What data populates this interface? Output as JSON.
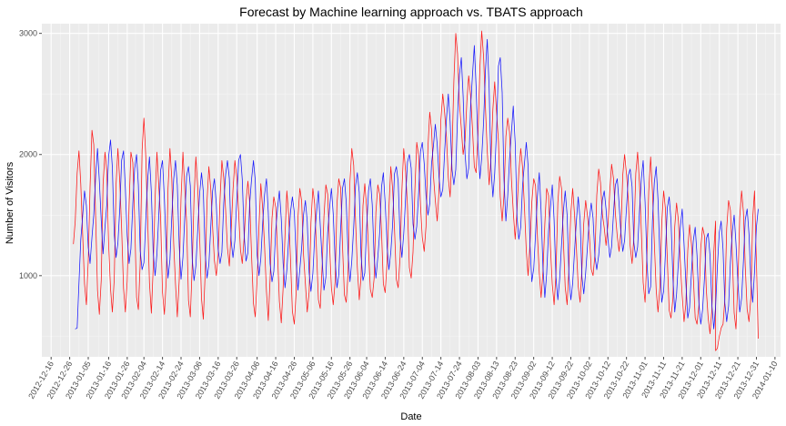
{
  "chart_data": {
    "type": "line",
    "title": "Forecast by Machine learning approach vs. TBATS approach",
    "xlabel": "Date",
    "ylabel": "Number of Visitors",
    "x_ticks": [
      "2012-12-16",
      "2012-12-26",
      "2013-01-05",
      "2013-01-16",
      "2013-01-26",
      "2013-02-04",
      "2013-02-14",
      "2013-02-24",
      "2013-03-06",
      "2013-03-16",
      "2013-03-26",
      "2013-04-06",
      "2013-04-16",
      "2013-04-26",
      "2013-05-06",
      "2013-05-16",
      "2013-05-26",
      "2013-06-04",
      "2013-06-14",
      "2013-06-24",
      "2013-07-04",
      "2013-07-14",
      "2013-07-24",
      "2013-08-03",
      "2013-08-13",
      "2013-08-23",
      "2013-09-02",
      "2013-09-12",
      "2013-09-22",
      "2013-10-02",
      "2013-10-12",
      "2013-10-22",
      "2013-11-01",
      "2013-11-11",
      "2013-11-21",
      "2013-12-01",
      "2013-12-11",
      "2013-12-21",
      "2013-12-31",
      "2014-01-10"
    ],
    "y_ticks": [
      1000,
      2000,
      3000
    ],
    "xlim": [
      "2012-12-11",
      "2014-01-13"
    ],
    "ylim": [
      330,
      3080
    ],
    "grid": true,
    "series": [
      {
        "color": "#FF0000",
        "line_style": "solid",
        "weekly_peaks": [
          [
            "2012-12-31",
            2030
          ],
          [
            "2013-01-07",
            2200
          ],
          [
            "2013-01-14",
            2020
          ],
          [
            "2013-01-21",
            2050
          ],
          [
            "2013-01-28",
            2020
          ],
          [
            "2013-02-04",
            2300
          ],
          [
            "2013-02-11",
            2020
          ],
          [
            "2013-02-18",
            2050
          ],
          [
            "2013-02-25",
            2020
          ],
          [
            "2013-03-04",
            1980
          ],
          [
            "2013-03-11",
            1900
          ],
          [
            "2013-03-18",
            1950
          ],
          [
            "2013-03-25",
            1950
          ],
          [
            "2013-04-01",
            1780
          ],
          [
            "2013-04-08",
            1760
          ],
          [
            "2013-04-15",
            1650
          ],
          [
            "2013-04-22",
            1700
          ],
          [
            "2013-04-29",
            1720
          ],
          [
            "2013-05-06",
            1720
          ],
          [
            "2013-05-13",
            1750
          ],
          [
            "2013-05-20",
            1800
          ],
          [
            "2013-05-27",
            2050
          ],
          [
            "2013-06-03",
            1760
          ],
          [
            "2013-06-10",
            1750
          ],
          [
            "2013-06-17",
            1900
          ],
          [
            "2013-06-24",
            2050
          ],
          [
            "2013-07-01",
            2100
          ],
          [
            "2013-07-08",
            2350
          ],
          [
            "2013-07-15",
            2500
          ],
          [
            "2013-07-22",
            3000
          ],
          [
            "2013-07-29",
            2650
          ],
          [
            "2013-08-05",
            3020
          ],
          [
            "2013-08-12",
            2600
          ],
          [
            "2013-08-19",
            2300
          ],
          [
            "2013-08-26",
            2050
          ],
          [
            "2013-09-02",
            1800
          ],
          [
            "2013-09-09",
            1720
          ],
          [
            "2013-09-16",
            1820
          ],
          [
            "2013-09-23",
            1720
          ],
          [
            "2013-09-30",
            1620
          ],
          [
            "2013-10-07",
            1880
          ],
          [
            "2013-10-14",
            1920
          ],
          [
            "2013-10-21",
            2000
          ],
          [
            "2013-10-28",
            2020
          ],
          [
            "2013-11-04",
            1980
          ],
          [
            "2013-11-11",
            1700
          ],
          [
            "2013-11-18",
            1600
          ],
          [
            "2013-11-25",
            1420
          ],
          [
            "2013-12-02",
            1400
          ],
          [
            "2013-12-09",
            1450
          ],
          [
            "2013-12-16",
            1620
          ],
          [
            "2013-12-23",
            1700
          ],
          [
            "2013-12-30",
            1700
          ]
        ],
        "weekly_troughs": [
          [
            "2012-12-28",
            1260
          ],
          [
            "2013-01-04",
            760
          ],
          [
            "2013-01-11",
            680
          ],
          [
            "2013-01-18",
            700
          ],
          [
            "2013-01-25",
            700
          ],
          [
            "2013-02-01",
            720
          ],
          [
            "2013-02-08",
            690
          ],
          [
            "2013-02-15",
            680
          ],
          [
            "2013-02-22",
            660
          ],
          [
            "2013-03-01",
            660
          ],
          [
            "2013-03-08",
            640
          ],
          [
            "2013-03-15",
            1000
          ],
          [
            "2013-03-22",
            1080
          ],
          [
            "2013-03-29",
            1100
          ],
          [
            "2013-04-05",
            660
          ],
          [
            "2013-04-12",
            630
          ],
          [
            "2013-04-19",
            610
          ],
          [
            "2013-04-26",
            600
          ],
          [
            "2013-05-03",
            700
          ],
          [
            "2013-05-10",
            730
          ],
          [
            "2013-05-17",
            760
          ],
          [
            "2013-05-24",
            780
          ],
          [
            "2013-05-31",
            800
          ],
          [
            "2013-06-07",
            820
          ],
          [
            "2013-06-14",
            860
          ],
          [
            "2013-06-21",
            900
          ],
          [
            "2013-06-28",
            980
          ],
          [
            "2013-07-05",
            1200
          ],
          [
            "2013-07-12",
            1450
          ],
          [
            "2013-07-19",
            1650
          ],
          [
            "2013-07-26",
            2000
          ],
          [
            "2013-08-02",
            1850
          ],
          [
            "2013-08-09",
            1750
          ],
          [
            "2013-08-16",
            1450
          ],
          [
            "2013-08-23",
            1300
          ],
          [
            "2013-08-30",
            1000
          ],
          [
            "2013-09-06",
            820
          ],
          [
            "2013-09-13",
            760
          ],
          [
            "2013-09-20",
            760
          ],
          [
            "2013-09-27",
            780
          ],
          [
            "2013-10-04",
            1000
          ],
          [
            "2013-10-11",
            1250
          ],
          [
            "2013-10-18",
            1200
          ],
          [
            "2013-10-25",
            1100
          ],
          [
            "2013-11-01",
            780
          ],
          [
            "2013-11-08",
            700
          ],
          [
            "2013-11-15",
            650
          ],
          [
            "2013-11-22",
            620
          ],
          [
            "2013-11-29",
            600
          ],
          [
            "2013-12-06",
            520
          ],
          [
            "2013-12-09",
            380
          ],
          [
            "2013-12-13",
            600
          ],
          [
            "2013-12-20",
            560
          ],
          [
            "2013-12-27",
            620
          ],
          [
            "2014-01-01",
            480
          ]
        ]
      },
      {
        "color": "#0000FF",
        "line_style": "solid",
        "weekly_peaks": [
          [
            "2013-01-03",
            1700
          ],
          [
            "2013-01-10",
            2050
          ],
          [
            "2013-01-17",
            2120
          ],
          [
            "2013-01-24",
            2030
          ],
          [
            "2013-01-31",
            2000
          ],
          [
            "2013-02-07",
            1980
          ],
          [
            "2013-02-14",
            1950
          ],
          [
            "2013-02-21",
            1950
          ],
          [
            "2013-02-28",
            1900
          ],
          [
            "2013-03-07",
            1850
          ],
          [
            "2013-03-14",
            1800
          ],
          [
            "2013-03-21",
            1950
          ],
          [
            "2013-03-28",
            2000
          ],
          [
            "2013-04-04",
            1950
          ],
          [
            "2013-04-11",
            1800
          ],
          [
            "2013-04-18",
            1700
          ],
          [
            "2013-04-25",
            1650
          ],
          [
            "2013-05-02",
            1620
          ],
          [
            "2013-05-09",
            1700
          ],
          [
            "2013-05-16",
            1720
          ],
          [
            "2013-05-23",
            1800
          ],
          [
            "2013-05-30",
            1850
          ],
          [
            "2013-06-06",
            1800
          ],
          [
            "2013-06-13",
            1850
          ],
          [
            "2013-06-20",
            1900
          ],
          [
            "2013-06-27",
            2000
          ],
          [
            "2013-07-04",
            2100
          ],
          [
            "2013-07-11",
            2250
          ],
          [
            "2013-07-18",
            2500
          ],
          [
            "2013-07-25",
            2800
          ],
          [
            "2013-08-01",
            2900
          ],
          [
            "2013-08-08",
            2950
          ],
          [
            "2013-08-15",
            2800
          ],
          [
            "2013-08-22",
            2400
          ],
          [
            "2013-08-29",
            2100
          ],
          [
            "2013-09-05",
            1850
          ],
          [
            "2013-09-12",
            1750
          ],
          [
            "2013-09-19",
            1700
          ],
          [
            "2013-09-26",
            1650
          ],
          [
            "2013-10-03",
            1600
          ],
          [
            "2013-10-10",
            1700
          ],
          [
            "2013-10-17",
            1800
          ],
          [
            "2013-10-24",
            1880
          ],
          [
            "2013-10-31",
            1950
          ],
          [
            "2013-11-07",
            1900
          ],
          [
            "2013-11-14",
            1650
          ],
          [
            "2013-11-21",
            1550
          ],
          [
            "2013-11-28",
            1400
          ],
          [
            "2013-12-05",
            1350
          ],
          [
            "2013-12-12",
            1450
          ],
          [
            "2013-12-19",
            1500
          ],
          [
            "2013-12-26",
            1550
          ],
          [
            "2014-01-01",
            1550
          ]
        ],
        "weekly_troughs": [
          [
            "2012-12-29",
            560
          ],
          [
            "2013-01-06",
            1100
          ],
          [
            "2013-01-13",
            1180
          ],
          [
            "2013-01-20",
            1150
          ],
          [
            "2013-01-27",
            1100
          ],
          [
            "2013-02-03",
            1050
          ],
          [
            "2013-02-10",
            1000
          ],
          [
            "2013-02-17",
            980
          ],
          [
            "2013-02-24",
            970
          ],
          [
            "2013-03-03",
            960
          ],
          [
            "2013-03-10",
            980
          ],
          [
            "2013-03-17",
            1100
          ],
          [
            "2013-03-24",
            1150
          ],
          [
            "2013-03-31",
            1120
          ],
          [
            "2013-04-07",
            1000
          ],
          [
            "2013-04-14",
            950
          ],
          [
            "2013-04-21",
            900
          ],
          [
            "2013-04-28",
            880
          ],
          [
            "2013-05-05",
            870
          ],
          [
            "2013-05-12",
            880
          ],
          [
            "2013-05-19",
            900
          ],
          [
            "2013-05-26",
            950
          ],
          [
            "2013-06-02",
            960
          ],
          [
            "2013-06-09",
            980
          ],
          [
            "2013-06-16",
            1050
          ],
          [
            "2013-06-23",
            1150
          ],
          [
            "2013-06-30",
            1300
          ],
          [
            "2013-07-07",
            1500
          ],
          [
            "2013-07-14",
            1650
          ],
          [
            "2013-07-21",
            1750
          ],
          [
            "2013-07-28",
            1800
          ],
          [
            "2013-08-04",
            1800
          ],
          [
            "2013-08-11",
            1650
          ],
          [
            "2013-08-18",
            1450
          ],
          [
            "2013-08-25",
            1300
          ],
          [
            "2013-09-01",
            950
          ],
          [
            "2013-09-08",
            820
          ],
          [
            "2013-09-15",
            800
          ],
          [
            "2013-09-22",
            800
          ],
          [
            "2013-09-29",
            850
          ],
          [
            "2013-10-06",
            1050
          ],
          [
            "2013-10-13",
            1150
          ],
          [
            "2013-10-20",
            1200
          ],
          [
            "2013-10-27",
            1150
          ],
          [
            "2013-11-03",
            850
          ],
          [
            "2013-11-10",
            780
          ],
          [
            "2013-11-17",
            700
          ],
          [
            "2013-11-24",
            650
          ],
          [
            "2013-12-01",
            600
          ],
          [
            "2013-12-08",
            560
          ],
          [
            "2013-12-15",
            620
          ],
          [
            "2013-12-22",
            700
          ],
          [
            "2013-12-29",
            780
          ]
        ]
      }
    ]
  }
}
